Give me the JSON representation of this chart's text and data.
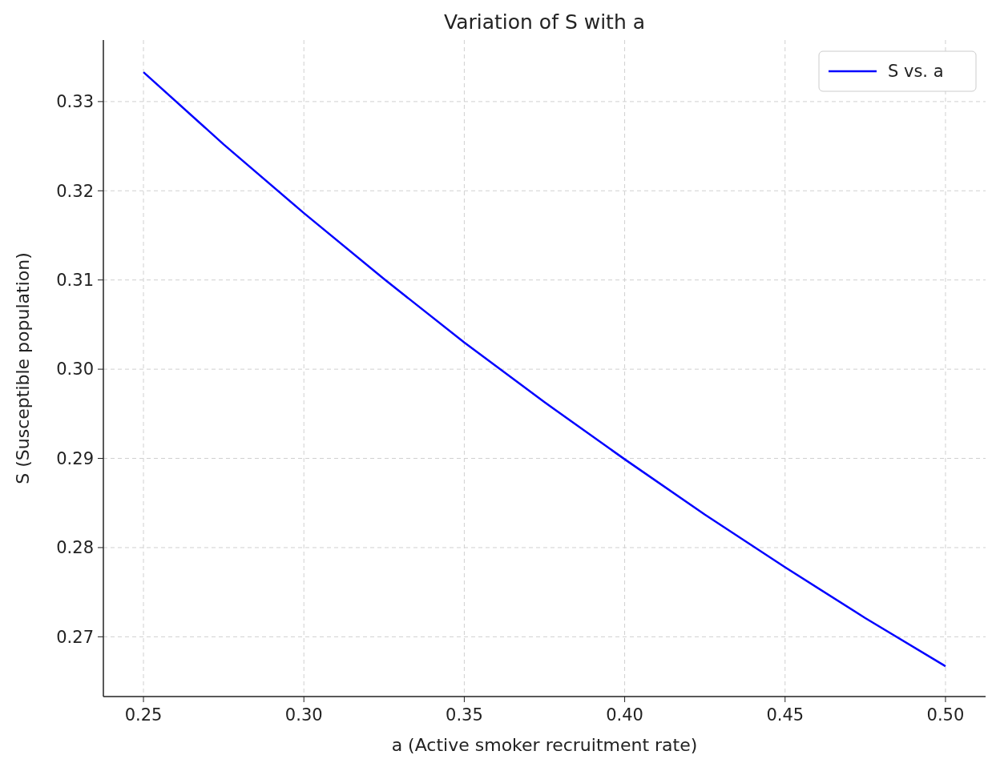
{
  "chart_data": {
    "type": "line",
    "title": "Variation of S with a",
    "xlabel": "a (Active smoker recruitment rate)",
    "ylabel": "S (Susceptible population)",
    "x": [
      0.25,
      0.275,
      0.3,
      0.325,
      0.35,
      0.375,
      0.4,
      0.425,
      0.45,
      0.475,
      0.5
    ],
    "series": [
      {
        "name": "S vs. a",
        "color": "#0000ff",
        "values": [
          0.3333,
          0.3252,
          0.3175,
          0.3101,
          0.303,
          0.2963,
          0.2899,
          0.2837,
          0.2778,
          0.2721,
          0.2667
        ]
      }
    ],
    "xlim": [
      0.2375,
      0.5125
    ],
    "xticks": [
      {
        "value": 0.25,
        "label": "0.25"
      },
      {
        "value": 0.3,
        "label": "0.30"
      },
      {
        "value": 0.35,
        "label": "0.35"
      },
      {
        "value": 0.4,
        "label": "0.40"
      },
      {
        "value": 0.45,
        "label": "0.45"
      },
      {
        "value": 0.5,
        "label": "0.50"
      }
    ],
    "ylim": [
      0.2633,
      0.3369
    ],
    "yticks": [
      {
        "value": 0.27,
        "label": "0.27"
      },
      {
        "value": 0.28,
        "label": "0.28"
      },
      {
        "value": 0.29,
        "label": "0.29"
      },
      {
        "value": 0.3,
        "label": "0.30"
      },
      {
        "value": 0.31,
        "label": "0.31"
      },
      {
        "value": 0.32,
        "label": "0.32"
      },
      {
        "value": 0.33,
        "label": "0.33"
      }
    ],
    "grid": true,
    "legend": "top right",
    "line_style": "solid",
    "marker": "none"
  }
}
